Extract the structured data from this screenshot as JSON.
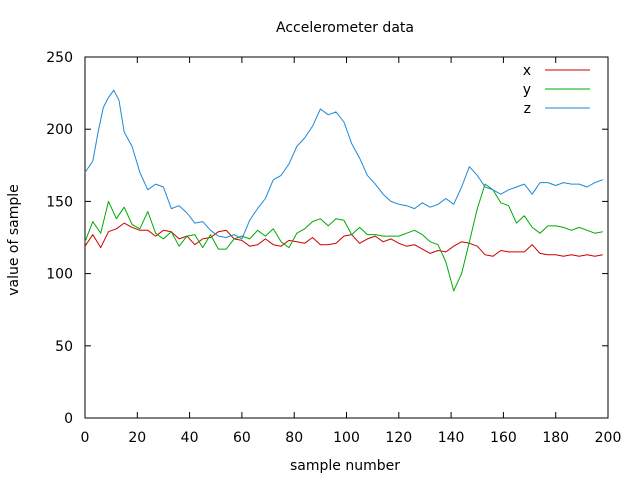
{
  "chart_data": {
    "type": "line",
    "title": "Accelerometer data",
    "xlabel": "sample number",
    "ylabel": "value of sample",
    "xlim": [
      0,
      200
    ],
    "ylim": [
      0,
      250
    ],
    "x_ticks": [
      0,
      20,
      40,
      60,
      80,
      100,
      120,
      140,
      160,
      180,
      200
    ],
    "y_ticks": [
      0,
      50,
      100,
      150,
      200,
      250
    ],
    "grid": false,
    "legend_position": "top-right",
    "series": [
      {
        "name": "x",
        "color": "#cc0000",
        "points": [
          [
            0,
            119
          ],
          [
            3,
            127
          ],
          [
            6,
            118
          ],
          [
            9,
            129
          ],
          [
            12,
            131
          ],
          [
            15,
            135
          ],
          [
            18,
            132
          ],
          [
            21,
            130
          ],
          [
            24,
            130
          ],
          [
            27,
            126
          ],
          [
            30,
            130
          ],
          [
            33,
            129
          ],
          [
            36,
            124
          ],
          [
            39,
            126
          ],
          [
            42,
            120
          ],
          [
            45,
            124
          ],
          [
            48,
            125
          ],
          [
            51,
            129
          ],
          [
            54,
            130
          ],
          [
            57,
            124
          ],
          [
            60,
            123
          ],
          [
            63,
            119
          ],
          [
            66,
            120
          ],
          [
            69,
            124
          ],
          [
            72,
            120
          ],
          [
            75,
            119
          ],
          [
            78,
            123
          ],
          [
            81,
            122
          ],
          [
            84,
            121
          ],
          [
            87,
            125
          ],
          [
            90,
            120
          ],
          [
            93,
            120
          ],
          [
            96,
            121
          ],
          [
            99,
            126
          ],
          [
            102,
            127
          ],
          [
            105,
            121
          ],
          [
            108,
            124
          ],
          [
            111,
            126
          ],
          [
            114,
            122
          ],
          [
            117,
            124
          ],
          [
            120,
            121
          ],
          [
            123,
            119
          ],
          [
            126,
            120
          ],
          [
            129,
            117
          ],
          [
            132,
            114
          ],
          [
            135,
            116
          ],
          [
            138,
            115
          ],
          [
            141,
            119
          ],
          [
            144,
            122
          ],
          [
            147,
            121
          ],
          [
            150,
            119
          ],
          [
            153,
            113
          ],
          [
            156,
            112
          ],
          [
            159,
            116
          ],
          [
            162,
            115
          ],
          [
            165,
            115
          ],
          [
            168,
            115
          ],
          [
            171,
            120
          ],
          [
            174,
            114
          ],
          [
            177,
            113
          ],
          [
            180,
            113
          ],
          [
            183,
            112
          ],
          [
            186,
            113
          ],
          [
            189,
            112
          ],
          [
            192,
            113
          ],
          [
            195,
            112
          ],
          [
            198,
            113
          ]
        ]
      },
      {
        "name": "y",
        "color": "#00aa00",
        "points": [
          [
            0,
            122
          ],
          [
            3,
            136
          ],
          [
            6,
            128
          ],
          [
            9,
            150
          ],
          [
            12,
            138
          ],
          [
            15,
            146
          ],
          [
            18,
            134
          ],
          [
            21,
            131
          ],
          [
            24,
            143
          ],
          [
            27,
            128
          ],
          [
            30,
            124
          ],
          [
            33,
            129
          ],
          [
            36,
            119
          ],
          [
            39,
            126
          ],
          [
            42,
            127
          ],
          [
            45,
            118
          ],
          [
            48,
            127
          ],
          [
            51,
            117
          ],
          [
            54,
            117
          ],
          [
            57,
            124
          ],
          [
            60,
            126
          ],
          [
            63,
            124
          ],
          [
            66,
            130
          ],
          [
            69,
            126
          ],
          [
            72,
            131
          ],
          [
            75,
            122
          ],
          [
            78,
            118
          ],
          [
            81,
            128
          ],
          [
            84,
            131
          ],
          [
            87,
            136
          ],
          [
            90,
            138
          ],
          [
            93,
            133
          ],
          [
            96,
            138
          ],
          [
            99,
            137
          ],
          [
            102,
            127
          ],
          [
            105,
            132
          ],
          [
            108,
            127
          ],
          [
            111,
            127
          ],
          [
            114,
            126
          ],
          [
            117,
            126
          ],
          [
            120,
            126
          ],
          [
            123,
            128
          ],
          [
            126,
            130
          ],
          [
            129,
            127
          ],
          [
            132,
            122
          ],
          [
            135,
            120
          ],
          [
            138,
            108
          ],
          [
            141,
            88
          ],
          [
            144,
            100
          ],
          [
            147,
            122
          ],
          [
            150,
            145
          ],
          [
            153,
            162
          ],
          [
            156,
            158
          ],
          [
            159,
            149
          ],
          [
            162,
            147
          ],
          [
            165,
            135
          ],
          [
            168,
            140
          ],
          [
            171,
            132
          ],
          [
            174,
            128
          ],
          [
            177,
            133
          ],
          [
            180,
            133
          ],
          [
            183,
            132
          ],
          [
            186,
            130
          ],
          [
            189,
            132
          ],
          [
            192,
            130
          ],
          [
            195,
            128
          ],
          [
            198,
            129
          ]
        ]
      },
      {
        "name": "z",
        "color": "#1e88d6",
        "points": [
          [
            0,
            170
          ],
          [
            3,
            178
          ],
          [
            5,
            198
          ],
          [
            7,
            215
          ],
          [
            9,
            222
          ],
          [
            11,
            227
          ],
          [
            13,
            220
          ],
          [
            15,
            198
          ],
          [
            18,
            188
          ],
          [
            21,
            170
          ],
          [
            24,
            158
          ],
          [
            27,
            162
          ],
          [
            30,
            160
          ],
          [
            33,
            145
          ],
          [
            36,
            147
          ],
          [
            39,
            142
          ],
          [
            42,
            135
          ],
          [
            45,
            136
          ],
          [
            48,
            130
          ],
          [
            51,
            126
          ],
          [
            54,
            125
          ],
          [
            57,
            127
          ],
          [
            60,
            124
          ],
          [
            63,
            137
          ],
          [
            66,
            145
          ],
          [
            69,
            152
          ],
          [
            72,
            165
          ],
          [
            75,
            168
          ],
          [
            78,
            176
          ],
          [
            81,
            188
          ],
          [
            84,
            194
          ],
          [
            87,
            202
          ],
          [
            90,
            214
          ],
          [
            93,
            210
          ],
          [
            96,
            212
          ],
          [
            99,
            205
          ],
          [
            102,
            190
          ],
          [
            105,
            180
          ],
          [
            108,
            168
          ],
          [
            111,
            162
          ],
          [
            114,
            155
          ],
          [
            117,
            150
          ],
          [
            120,
            148
          ],
          [
            123,
            147
          ],
          [
            126,
            145
          ],
          [
            129,
            149
          ],
          [
            132,
            146
          ],
          [
            135,
            148
          ],
          [
            138,
            152
          ],
          [
            141,
            148
          ],
          [
            144,
            160
          ],
          [
            147,
            174
          ],
          [
            150,
            168
          ],
          [
            153,
            160
          ],
          [
            156,
            158
          ],
          [
            159,
            155
          ],
          [
            162,
            158
          ],
          [
            165,
            160
          ],
          [
            168,
            162
          ],
          [
            171,
            155
          ],
          [
            174,
            163
          ],
          [
            177,
            163
          ],
          [
            180,
            161
          ],
          [
            183,
            163
          ],
          [
            186,
            162
          ],
          [
            189,
            162
          ],
          [
            192,
            160
          ],
          [
            195,
            163
          ],
          [
            198,
            165
          ]
        ]
      }
    ]
  }
}
